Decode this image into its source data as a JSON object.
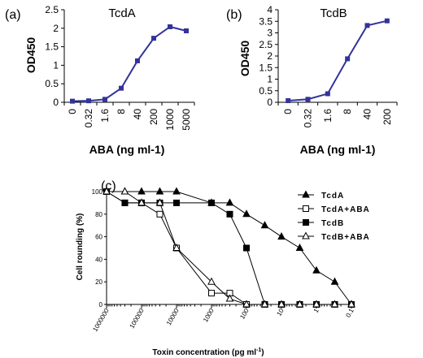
{
  "panel_labels": [
    "(a)",
    "(b)",
    "(c)"
  ],
  "chart_data": [
    {
      "type": "line",
      "title": "TcdA",
      "xlabel": "ABA (ng ml-1)",
      "ylabel": "OD450",
      "categories": [
        "0",
        "0.32",
        "1.6",
        "8",
        "40",
        "200",
        "1000",
        "5000"
      ],
      "values": [
        0.03,
        0.04,
        0.08,
        0.38,
        1.12,
        1.73,
        2.04,
        1.93
      ],
      "ylim": [
        0,
        2.5
      ],
      "yticks": [
        "0",
        "0.5",
        "1",
        "1.5",
        "2",
        "2.5"
      ],
      "color": "#33339a"
    },
    {
      "type": "line",
      "title": "TcdB",
      "xlabel": "ABA (ng ml-1)",
      "ylabel": "OD450",
      "categories": [
        "0",
        "0.32",
        "1.6",
        "8",
        "40",
        "200"
      ],
      "values": [
        0.07,
        0.13,
        0.37,
        1.88,
        3.32,
        3.52
      ],
      "ylim": [
        0,
        4
      ],
      "yticks": [
        "0",
        "0.5",
        "1",
        "1.5",
        "2",
        "2.5",
        "3",
        "3.5",
        "4"
      ],
      "color": "#33339a"
    },
    {
      "type": "line",
      "xlabel": "Toxin concentration (pg ml",
      "xlabel_sup": "-1",
      "xlabel_end": ")",
      "ylabel": "Cell rounding (%)",
      "xscale": "log-reversed",
      "xticks": [
        "1000000",
        "100000",
        "10000",
        "1000",
        "100",
        "10",
        "1",
        "0.1"
      ],
      "ylim": [
        0,
        100
      ],
      "yticks": [
        "0",
        "20",
        "40",
        "60",
        "80",
        "100"
      ],
      "legend": "right",
      "series": [
        {
          "name": "TcdA",
          "marker": "filled-triangle",
          "x": [
            1000000,
            300000,
            100000,
            30000,
            10000,
            1000,
            300,
            100,
            30,
            10,
            3,
            1,
            0.3,
            0.1
          ],
          "y": [
            100,
            100,
            100,
            100,
            100,
            90,
            90,
            80,
            70,
            60,
            50,
            30,
            20,
            0
          ]
        },
        {
          "name": "TcdA+ABA",
          "marker": "open-square",
          "x": [
            1000000,
            300000,
            100000,
            30000,
            10000,
            1000,
            300,
            100,
            30,
            10,
            3,
            1,
            0.3,
            0.1
          ],
          "y": [
            100,
            90,
            90,
            80,
            50,
            10,
            10,
            0,
            0,
            0,
            0,
            0,
            0,
            0
          ]
        },
        {
          "name": "TcdB",
          "marker": "filled-square",
          "x": [
            1000000,
            300000,
            100000,
            30000,
            10000,
            1000,
            300,
            100,
            30,
            10,
            3,
            1,
            0.3,
            0.1
          ],
          "y": [
            100,
            90,
            90,
            90,
            90,
            90,
            80,
            50,
            0,
            0,
            0,
            0,
            0,
            0
          ]
        },
        {
          "name": "TcdB+ABA",
          "marker": "open-triangle",
          "x": [
            1000000,
            300000,
            100000,
            30000,
            10000,
            1000,
            300,
            100,
            30,
            10,
            3,
            1,
            0.3,
            0.1
          ],
          "y": [
            100,
            100,
            90,
            90,
            50,
            20,
            5,
            0,
            0,
            0,
            0,
            0,
            0,
            0
          ]
        }
      ]
    }
  ]
}
